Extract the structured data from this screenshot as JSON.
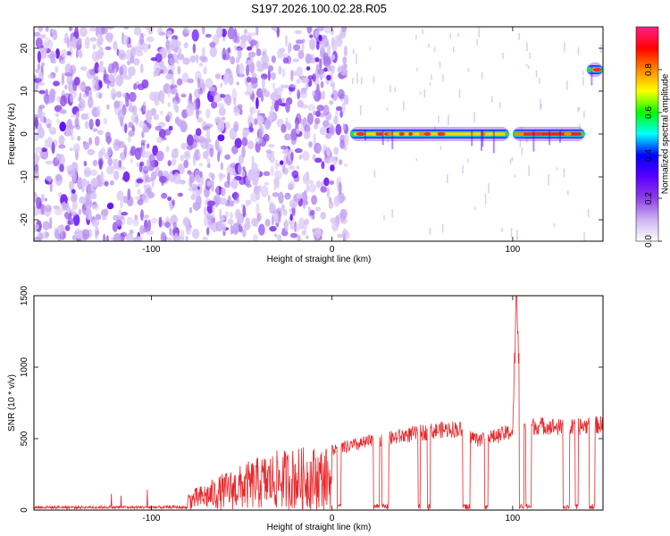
{
  "title": "S197.2026.100.02.28.R05",
  "chart_data": [
    {
      "type": "heatmap",
      "xlabel": "Height of straight line (km)",
      "ylabel": "Frequency (Hz)",
      "xlim": [
        -165,
        150
      ],
      "ylim": [
        -25,
        25
      ],
      "xticks": [
        -100,
        0,
        100
      ],
      "yticks": [
        -20,
        -10,
        0,
        10,
        20
      ],
      "colorbar": {
        "label": "Normalized spectral amplitude",
        "ticks": [
          0.0,
          0.2,
          0.4,
          0.6,
          0.8
        ],
        "range": [
          0,
          1
        ],
        "colors": [
          "#ffffff",
          "#cdb4f2",
          "#8f3fe6",
          "#5a00ff",
          "#0000ff",
          "#00ffff",
          "#00ff00",
          "#ffff00",
          "#ff8800",
          "#ff0000",
          "#ff2088"
        ]
      },
      "features": [
        {
          "name": "noise",
          "x_range": [
            -165,
            8
          ],
          "freq_range": [
            -25,
            25
          ],
          "amplitude": 0.08
        },
        {
          "name": "tone",
          "x_range": [
            10,
            98
          ],
          "freq_hz": 0,
          "amplitude": 0.75
        },
        {
          "name": "tone",
          "x_range": [
            100,
            140
          ],
          "freq_hz": 0,
          "amplitude": 0.9
        },
        {
          "name": "tone",
          "x_range": [
            141,
            150
          ],
          "freq_hz": 15,
          "amplitude": 0.7
        }
      ]
    },
    {
      "type": "line",
      "xlabel": "Height of straight line (km)",
      "ylabel": "SNR (10 * v/v)",
      "xlim": [
        -165,
        150
      ],
      "ylim": [
        0,
        1500
      ],
      "xticks": [
        -100,
        0,
        100
      ],
      "yticks": [
        0,
        500,
        1000,
        1500
      ],
      "color": "#e8282b",
      "envelope": [
        [
          -165,
          40
        ],
        [
          -140,
          45
        ],
        [
          -120,
          55
        ],
        [
          -100,
          70
        ],
        [
          -90,
          90
        ],
        [
          -80,
          130
        ],
        [
          -70,
          190
        ],
        [
          -60,
          260
        ],
        [
          -50,
          320
        ],
        [
          -40,
          380
        ],
        [
          -30,
          420
        ],
        [
          -20,
          440
        ],
        [
          -10,
          450
        ],
        [
          0,
          440
        ],
        [
          10,
          470
        ],
        [
          20,
          500
        ],
        [
          30,
          520
        ],
        [
          40,
          550
        ],
        [
          50,
          570
        ],
        [
          60,
          590
        ],
        [
          70,
          600
        ],
        [
          80,
          520
        ],
        [
          90,
          540
        ],
        [
          100,
          580
        ],
        [
          102,
          1500
        ],
        [
          105,
          650
        ],
        [
          110,
          620
        ],
        [
          120,
          620
        ],
        [
          130,
          600
        ],
        [
          140,
          620
        ],
        [
          150,
          630
        ]
      ]
    }
  ]
}
